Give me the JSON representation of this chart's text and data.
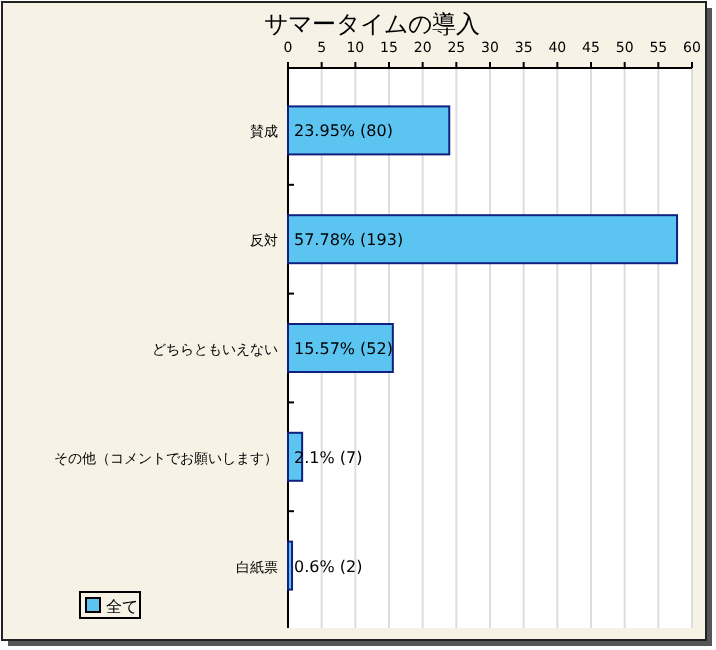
{
  "chart_data": {
    "type": "bar",
    "orientation": "horizontal",
    "title": "サマータイムの導入",
    "categories": [
      "賛成",
      "反対",
      "どちらともいえない",
      "その他（コメントでお願いします）",
      "白紙票"
    ],
    "series": [
      {
        "name": "全て",
        "color": "#5cc4f0",
        "values": [
          23.95,
          57.78,
          15.57,
          2.1,
          0.6
        ],
        "value_labels": [
          "23.95% (80)",
          "57.78% (193)",
          "15.57% (52)",
          "2.1% (7)",
          "0.6% (2)"
        ]
      }
    ],
    "xlim": [
      0,
      60
    ],
    "xticks": [
      0,
      5,
      10,
      15,
      20,
      25,
      30,
      35,
      40,
      45,
      50,
      55,
      60
    ],
    "grid": "x",
    "legend": "bottom left"
  }
}
